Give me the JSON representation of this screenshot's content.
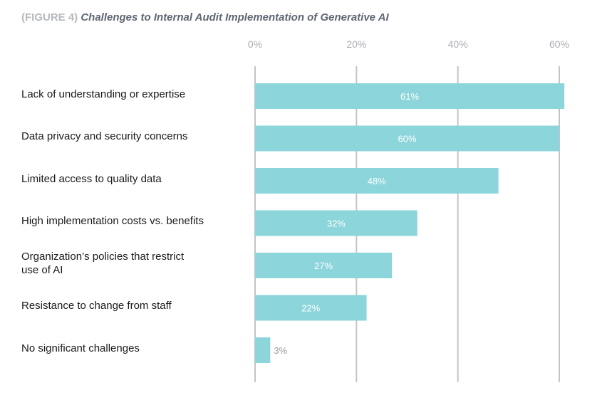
{
  "chart_data": {
    "type": "bar",
    "orientation": "horizontal",
    "title_prefix": "(FIGURE 4)",
    "title": "Challenges to Internal Audit Implementation of Generative AI",
    "categories": [
      "Lack of understanding or expertise",
      "Data privacy and security concerns",
      "Limited access to quality data",
      "High implementation costs vs. benefits",
      "Organization’s policies that restrict use of AI",
      "Resistance to change from staff",
      "No significant challenges"
    ],
    "category_lines": [
      [
        "Lack of understanding or expertise"
      ],
      [
        "Data privacy and security concerns"
      ],
      [
        "Limited access to quality data"
      ],
      [
        "High implementation costs vs. benefits"
      ],
      [
        "Organization’s policies that restrict",
        "use of AI"
      ],
      [
        "Resistance to change from staff"
      ],
      [
        "No significant challenges"
      ]
    ],
    "values": [
      61,
      60,
      48,
      32,
      27,
      22,
      3
    ],
    "data_labels": [
      "61%",
      "60%",
      "48%",
      "32%",
      "27%",
      "22%",
      "3%"
    ],
    "xticks": [
      0,
      20,
      40,
      60
    ],
    "xtick_labels": [
      "0%",
      "20%",
      "40%",
      "60%"
    ],
    "xlim": [
      0,
      60
    ],
    "xlabel": "",
    "ylabel": "",
    "grid": true,
    "axis_position": "top",
    "colors": {
      "bar": "#8cd5da",
      "grid": "#c4c4c6",
      "tick": "#a9acb1",
      "label_inside": "#ffffff",
      "label_outside": "#9a9da2"
    }
  }
}
